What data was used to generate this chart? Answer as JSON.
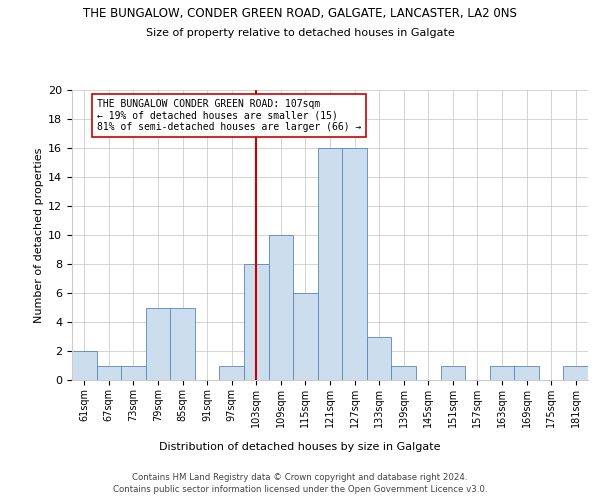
{
  "title1": "THE BUNGALOW, CONDER GREEN ROAD, GALGATE, LANCASTER, LA2 0NS",
  "title2": "Size of property relative to detached houses in Galgate",
  "xlabel": "Distribution of detached houses by size in Galgate",
  "ylabel": "Number of detached properties",
  "bins": [
    "61sqm",
    "67sqm",
    "73sqm",
    "79sqm",
    "85sqm",
    "91sqm",
    "97sqm",
    "103sqm",
    "109sqm",
    "115sqm",
    "121sqm",
    "127sqm",
    "133sqm",
    "139sqm",
    "145sqm",
    "151sqm",
    "157sqm",
    "163sqm",
    "169sqm",
    "175sqm",
    "181sqm"
  ],
  "counts": [
    2,
    1,
    1,
    5,
    5,
    0,
    1,
    8,
    10,
    6,
    16,
    16,
    3,
    1,
    0,
    1,
    0,
    1,
    1,
    0,
    1
  ],
  "subject_bin_index": 7,
  "annotation_line1": "THE BUNGALOW CONDER GREEN ROAD: 107sqm",
  "annotation_line2": "← 19% of detached houses are smaller (15)",
  "annotation_line3": "81% of semi-detached houses are larger (66) →",
  "bar_color": "#ccdded",
  "bar_edge_color": "#5588bb",
  "redline_color": "#cc0000",
  "ylim": [
    0,
    20
  ],
  "yticks": [
    0,
    2,
    4,
    6,
    8,
    10,
    12,
    14,
    16,
    18,
    20
  ],
  "footer1": "Contains HM Land Registry data © Crown copyright and database right 2024.",
  "footer2": "Contains public sector information licensed under the Open Government Licence v3.0.",
  "bg_color": "#ffffff",
  "grid_color": "#cccccc"
}
